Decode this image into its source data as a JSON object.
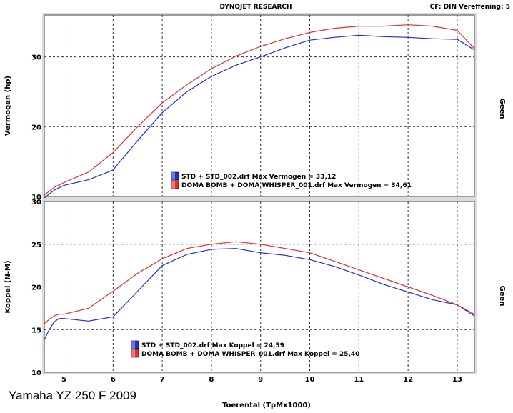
{
  "header": {
    "center": "DYNOJET RESEARCH",
    "right": "CF: DIN  Vereffening: 5"
  },
  "caption": "Yamaha YZ 250 F 2009",
  "colors": {
    "std": "#1f2fd0",
    "doma": "#e03030",
    "grid": "#333333",
    "frame": "#7a7a7a"
  },
  "chart_data": [
    {
      "type": "line",
      "ylabel": "Vermogen (hp)",
      "right_label": "Geen",
      "xlim": [
        4.6,
        13.35
      ],
      "ylim": [
        10,
        36
      ],
      "yticks": [
        10,
        20,
        30
      ],
      "grid": true,
      "legend": [
        {
          "text": "STD + STD_002.drf Max Vermogen = 33,12",
          "series": 0
        },
        {
          "text": "DOMA BOMB + DOMA WHISPER_001.drf Max Vermogen = 34,61",
          "series": 1
        }
      ],
      "series": [
        {
          "name": "STD + STD_002.drf",
          "color": "std",
          "x": [
            4.6,
            4.8,
            5.0,
            5.5,
            6.0,
            6.5,
            7.0,
            7.5,
            8.0,
            8.5,
            9.0,
            9.5,
            10.0,
            10.5,
            11.0,
            11.5,
            12.0,
            12.5,
            13.0,
            13.35
          ],
          "y": [
            9.8,
            10.9,
            11.6,
            12.4,
            13.8,
            18.0,
            22.0,
            25.0,
            27.2,
            28.8,
            30.0,
            31.3,
            32.4,
            32.8,
            33.1,
            32.9,
            32.8,
            32.6,
            32.5,
            31.0
          ]
        },
        {
          "name": "DOMA BOMB + DOMA WHISPER_001.drf",
          "color": "doma",
          "x": [
            4.6,
            4.8,
            5.0,
            5.5,
            6.0,
            6.5,
            7.0,
            7.5,
            8.0,
            8.5,
            9.0,
            9.5,
            10.0,
            10.5,
            11.0,
            11.5,
            12.0,
            12.5,
            13.0,
            13.35
          ],
          "y": [
            10.2,
            11.3,
            12.0,
            13.5,
            16.3,
            20.0,
            23.4,
            26.0,
            28.3,
            30.1,
            31.5,
            32.6,
            33.5,
            34.1,
            34.4,
            34.4,
            34.6,
            34.4,
            33.8,
            31.2
          ]
        }
      ]
    },
    {
      "type": "line",
      "ylabel": "Koppel (N-M)",
      "right_label": "Geen",
      "xlabel": "Toerental (TpMx1000)",
      "xlim": [
        4.6,
        13.35
      ],
      "ylim": [
        10,
        30
      ],
      "yticks": [
        10,
        15,
        20,
        25,
        30
      ],
      "xticks": [
        5,
        6,
        7,
        8,
        9,
        10,
        11,
        12,
        13
      ],
      "grid": true,
      "legend": [
        {
          "text": "STD + STD_002.drf Max Koppel = 24,59",
          "series": 0
        },
        {
          "text": "DOMA BOMB + DOMA WHISPER_001.drf Max Koppel = 25,40",
          "series": 1
        }
      ],
      "series": [
        {
          "name": "STD + STD_002.drf",
          "color": "std",
          "x": [
            4.6,
            4.7,
            4.8,
            4.9,
            5.0,
            5.5,
            6.0,
            6.5,
            7.0,
            7.5,
            8.0,
            8.5,
            9.0,
            9.5,
            10.0,
            10.5,
            11.0,
            11.5,
            12.0,
            12.5,
            13.0,
            13.35
          ],
          "y": [
            13.8,
            15.0,
            15.9,
            16.3,
            16.3,
            16.0,
            16.5,
            19.5,
            22.5,
            23.8,
            24.4,
            24.5,
            24.0,
            23.7,
            23.2,
            22.4,
            21.4,
            20.3,
            19.4,
            18.5,
            17.9,
            16.6
          ]
        },
        {
          "name": "DOMA BOMB + DOMA WHISPER_001.drf",
          "color": "doma",
          "x": [
            4.6,
            4.7,
            4.8,
            4.9,
            5.0,
            5.5,
            6.0,
            6.5,
            7.0,
            7.5,
            8.0,
            8.5,
            9.0,
            9.5,
            10.0,
            10.5,
            11.0,
            11.5,
            12.0,
            12.5,
            13.0,
            13.35
          ],
          "y": [
            15.7,
            16.2,
            16.6,
            16.8,
            16.8,
            17.5,
            19.5,
            21.6,
            23.3,
            24.5,
            25.0,
            25.3,
            25.0,
            24.5,
            24.0,
            23.0,
            22.0,
            21.0,
            20.0,
            19.0,
            17.9,
            16.8
          ]
        }
      ]
    }
  ]
}
